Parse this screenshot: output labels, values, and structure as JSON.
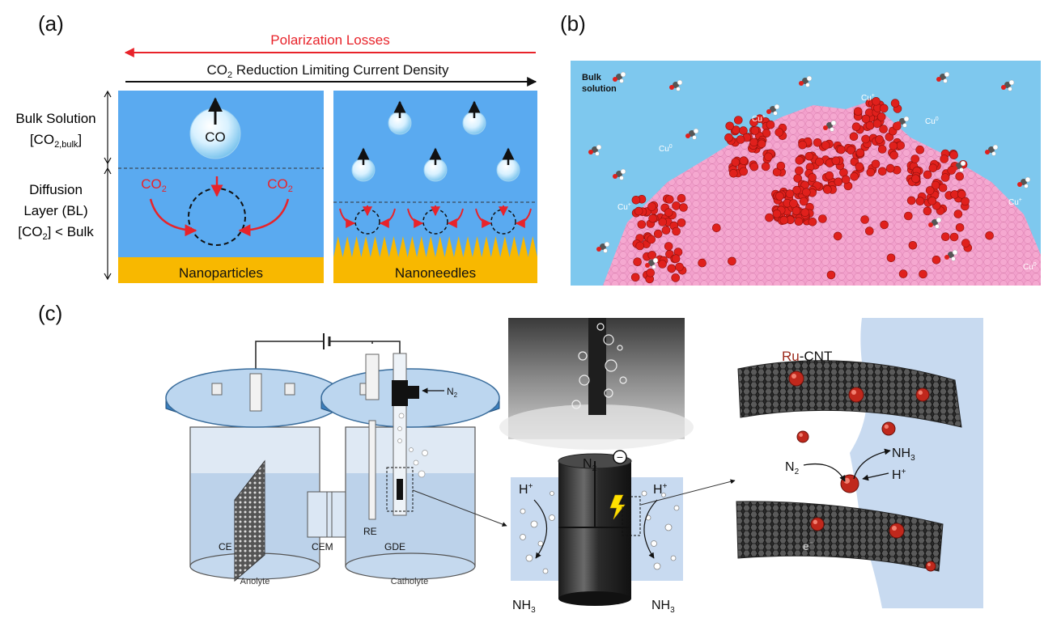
{
  "panel_labels": {
    "a": "(a)",
    "b": "(b)",
    "c": "(c)"
  },
  "panel_a": {
    "polarization_losses": "Polarization Losses",
    "limiting_current": "CO",
    "limiting_current_sub": "2",
    "limiting_current_rest": " Reduction Limiting Current Density",
    "bulk_label_1": "Bulk Solution",
    "bulk_label_2": "[CO",
    "bulk_label_2_sub": "2,bulk",
    "bulk_label_2_end": "]",
    "bl_label_1": "Diffusion",
    "bl_label_2": "Layer (BL)",
    "bl_label_3": "[CO",
    "bl_label_3_sub": "2",
    "bl_label_3_end": "] < Bulk",
    "co_bubble": "CO",
    "co2_left": "CO",
    "co2_left_sub": "2",
    "co2_right": "CO",
    "co2_right_sub": "2",
    "nanoparticles": "Nanoparticles",
    "nanoneedles": "Nanoneedles",
    "colors": {
      "solution": "#5aaaf0",
      "substrate": "#f8b800",
      "red": "#e8232a"
    }
  },
  "panel_b": {
    "bulk_label_1": "Bulk",
    "bulk_label_2": "solution",
    "cu_plus": "Cu",
    "cu_plus_sup": "+",
    "cu_zero": "Cu",
    "cu_zero_sup": "0",
    "colors": {
      "background": "#7ec8ee",
      "copper": "#f08ac0",
      "oxide": "#e0201c"
    }
  },
  "panel_c": {
    "n2_inlet": "N",
    "n2_inlet_sub": "2",
    "ce": "CE",
    "cem": "CEM",
    "re": "RE",
    "gde": "GDE",
    "anolyte": "Anolyte",
    "catholyte": "Catholyte",
    "gde_n2": "N",
    "gde_n2_sub": "2",
    "gde_minus": "−",
    "h_plus_left": "H",
    "h_plus_right": "H",
    "nh3_left": "NH",
    "nh3_left_sub": "3",
    "nh3_right": "NH",
    "nh3_right_sub": "3",
    "ru_cnt_ru": "Ru",
    "ru_cnt_rest": "-CNT",
    "cnt_nh3": "NH",
    "cnt_nh3_sub": "3",
    "cnt_n2": "N",
    "cnt_n2_sub": "2",
    "cnt_h_plus": "H",
    "cnt_electron": "e",
    "colors": {
      "cap_blue": "#3a7fbf",
      "electrolyte": "#c8daf0",
      "ru": "#c0281c"
    }
  }
}
